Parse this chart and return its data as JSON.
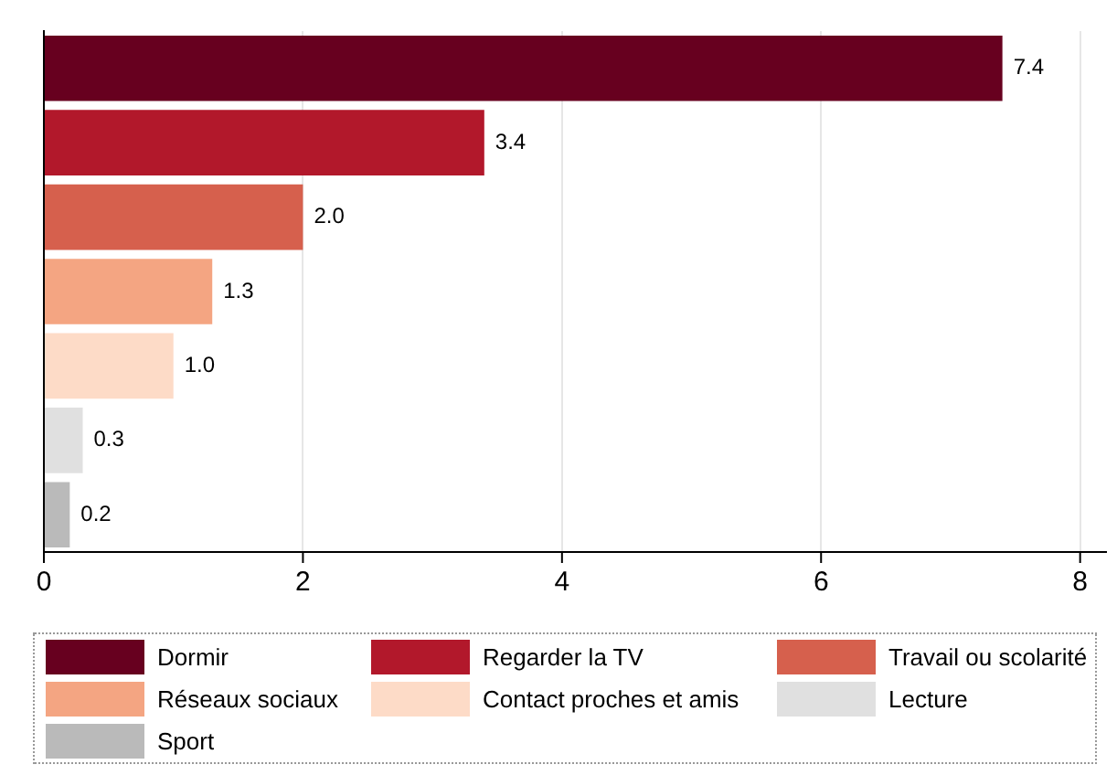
{
  "chart_data": {
    "type": "bar",
    "orientation": "horizontal",
    "stacked": true,
    "categories": [
      null,
      null,
      null,
      null,
      null,
      null,
      null
    ],
    "series": [
      {
        "name": "Dormir",
        "color": "#67001f",
        "values": [
          7.4,
          null,
          null,
          null,
          null,
          null,
          null
        ],
        "value_labels": [
          "7.4",
          null,
          null,
          null,
          null,
          null,
          null
        ]
      },
      {
        "name": "Regarder la TV",
        "color": "#b2182b",
        "values": [
          null,
          3.4,
          null,
          null,
          null,
          null,
          null
        ],
        "value_labels": [
          null,
          "3.4",
          null,
          null,
          null,
          null,
          null
        ]
      },
      {
        "name": "Travail ou scolarité",
        "color": "#d6604d",
        "values": [
          null,
          null,
          2.0,
          null,
          null,
          null,
          null
        ],
        "value_labels": [
          null,
          null,
          "2.0",
          null,
          null,
          null,
          null
        ]
      },
      {
        "name": "Réseaux sociaux",
        "color": "#f4a582",
        "values": [
          null,
          null,
          null,
          1.3,
          null,
          null,
          null
        ],
        "value_labels": [
          null,
          null,
          null,
          "1.3",
          null,
          null,
          null
        ]
      },
      {
        "name": "Contact proches et amis",
        "color": "#fddbc7",
        "values": [
          null,
          null,
          null,
          null,
          1.0,
          null,
          null
        ],
        "value_labels": [
          null,
          null,
          null,
          null,
          "1.0",
          null,
          null
        ]
      },
      {
        "name": "Lecture",
        "color": "#e0e0e0",
        "values": [
          null,
          null,
          null,
          null,
          null,
          0.3,
          null
        ],
        "value_labels": [
          null,
          null,
          null,
          null,
          null,
          "0.3",
          null
        ]
      },
      {
        "name": "Sport",
        "color": "#bababa",
        "values": [
          null,
          null,
          null,
          null,
          null,
          null,
          0.2
        ],
        "value_labels": [
          null,
          null,
          null,
          null,
          null,
          null,
          "0.2"
        ]
      }
    ],
    "xlim": [
      0,
      8.2
    ],
    "xticks": [
      0,
      2,
      4,
      6,
      8
    ],
    "grid": "x",
    "legend": "bottom"
  }
}
